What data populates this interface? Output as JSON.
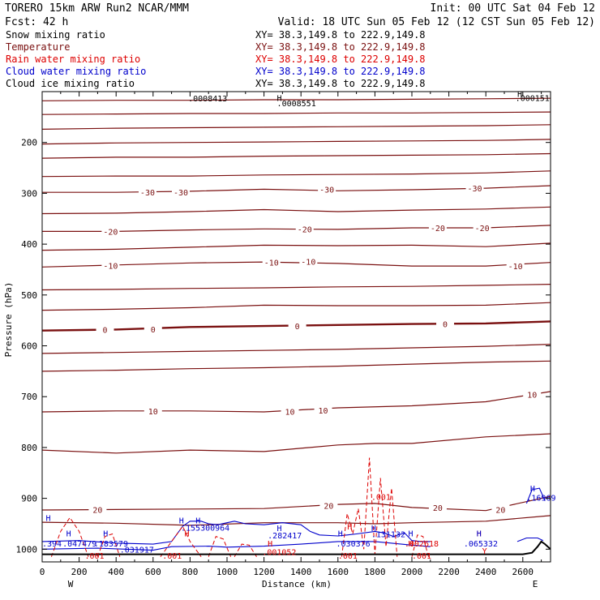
{
  "header": {
    "title": "TORERO  15km ARW   Run2    NCAR/MMM",
    "init": "Init: 00 UTC Sat 04 Feb 12",
    "fcst": "Fcst:   42 h",
    "valid": "Valid: 18 UTC Sun 05 Feb 12 (12 CST Sun 05 Feb 12)"
  },
  "colors": {
    "snow": "#000000",
    "temperature": "#7a1010",
    "rain": "#dd0000",
    "cloud_water": "#0000cc",
    "cloud_ice": "#000000",
    "background": "#ffffff"
  },
  "chart_data": {
    "type": "line",
    "title": "Vertical cross section",
    "xlabel": "Distance (km)",
    "ylabel": "Pressure (hPa)",
    "xlim": [
      0,
      2750
    ],
    "ylim": [
      1025,
      100
    ],
    "x_ticks": [
      0,
      200,
      400,
      600,
      800,
      1000,
      1200,
      1400,
      1600,
      1800,
      2000,
      2200,
      2400,
      2600
    ],
    "y_ticks": [
      200,
      300,
      400,
      500,
      600,
      700,
      800,
      900,
      1000
    ],
    "x_end_labels": {
      "left": "W",
      "right": "E"
    },
    "legend": [
      {
        "name": "Snow mixing ratio",
        "xy": "XY=  38.3,149.8 to 222.9,149.8",
        "color_key": "snow"
      },
      {
        "name": "Temperature",
        "xy": "XY=  38.3,149.8 to 222.9,149.8",
        "color_key": "temperature"
      },
      {
        "name": "Rain water mixing ratio",
        "xy": "XY=  38.3,149.8 to 222.9,149.8",
        "color_key": "rain"
      },
      {
        "name": "Cloud water mixing ratio",
        "xy": "XY=  38.3,149.8 to 222.9,149.8",
        "color_key": "cloud_water"
      },
      {
        "name": "Cloud ice mixing ratio",
        "xy": "XY=  38.3,149.8 to 222.9,149.8",
        "color_key": "cloud_ice"
      }
    ],
    "temperature_isotherms": [
      {
        "x": [
          0,
          400,
          800,
          1200,
          1600,
          2000,
          2400,
          2750
        ],
        "p": [
          118,
          117,
          117,
          116,
          116,
          115,
          114,
          113
        ]
      },
      {
        "x": [
          0,
          400,
          800,
          1200,
          1600,
          2000,
          2400,
          2750
        ],
        "p": [
          145,
          144,
          143,
          143,
          142,
          142,
          141,
          140
        ]
      },
      {
        "x": [
          0,
          400,
          800,
          1200,
          1600,
          2000,
          2400,
          2750
        ],
        "p": [
          174,
          172,
          171,
          170,
          169,
          168,
          167,
          165
        ]
      },
      {
        "x": [
          0,
          400,
          800,
          1200,
          1600,
          2000,
          2400,
          2750
        ],
        "p": [
          203,
          201,
          200,
          199,
          198,
          197,
          196,
          194
        ]
      },
      {
        "x": [
          0,
          400,
          800,
          1200,
          1600,
          2000,
          2400,
          2750
        ],
        "p": [
          231,
          229,
          229,
          227,
          226,
          225,
          224,
          222
        ]
      },
      {
        "x": [
          0,
          400,
          800,
          1200,
          1600,
          2000,
          2400,
          2750
        ],
        "p": [
          267,
          266,
          266,
          264,
          263,
          262,
          260,
          256
        ]
      },
      {
        "value": -30,
        "x": [
          0,
          400,
          800,
          1200,
          1600,
          2000,
          2400,
          2750
        ],
        "p": [
          298,
          298,
          296,
          292,
          295,
          293,
          290,
          285
        ]
      },
      {
        "x": [
          0,
          400,
          800,
          1200,
          1600,
          2000,
          2400,
          2750
        ],
        "p": [
          340,
          339,
          336,
          332,
          336,
          333,
          331,
          327
        ]
      },
      {
        "value": -20,
        "x": [
          0,
          400,
          800,
          1200,
          1600,
          2000,
          2400,
          2750
        ],
        "p": [
          375,
          375,
          372,
          370,
          371,
          368,
          368,
          363
        ]
      },
      {
        "x": [
          0,
          400,
          800,
          1200,
          1600,
          2000,
          2400,
          2750
        ],
        "p": [
          412,
          410,
          406,
          402,
          403,
          402,
          405,
          398
        ]
      },
      {
        "value": -10,
        "x": [
          0,
          400,
          800,
          1200,
          1600,
          2000,
          2400,
          2750
        ],
        "p": [
          445,
          441,
          437,
          435,
          438,
          443,
          443,
          436
        ]
      },
      {
        "x": [
          0,
          400,
          800,
          1200,
          1600,
          2000,
          2400,
          2750
        ],
        "p": [
          490,
          489,
          487,
          486,
          484,
          483,
          481,
          479
        ]
      },
      {
        "x": [
          0,
          400,
          800,
          1200,
          1600,
          2000,
          2400,
          2750
        ],
        "p": [
          530,
          528,
          525,
          520,
          521,
          521,
          520,
          515
        ]
      },
      {
        "value": 0,
        "x": [
          0,
          400,
          800,
          1200,
          1600,
          2000,
          2400,
          2750
        ],
        "p": [
          570,
          568,
          563,
          561,
          559,
          557,
          556,
          552
        ],
        "bold": true
      },
      {
        "x": [
          0,
          400,
          800,
          1200,
          1600,
          2000,
          2400,
          2750
        ],
        "p": [
          615,
          613,
          611,
          609,
          607,
          604,
          601,
          597
        ]
      },
      {
        "x": [
          0,
          400,
          800,
          1200,
          1600,
          2000,
          2400,
          2750
        ],
        "p": [
          650,
          648,
          645,
          643,
          640,
          636,
          632,
          630
        ]
      },
      {
        "value": 10,
        "x": [
          0,
          400,
          800,
          1200,
          1600,
          2000,
          2400,
          2750
        ],
        "p": [
          730,
          728,
          728,
          730,
          722,
          718,
          710,
          690
        ]
      },
      {
        "x": [
          0,
          400,
          800,
          1200,
          1600,
          1800,
          2000,
          2400,
          2750
        ],
        "p": [
          805,
          811,
          805,
          808,
          795,
          792,
          792,
          779,
          773
        ]
      },
      {
        "value": 20,
        "x": [
          0,
          400,
          800,
          1200,
          1600,
          1800,
          2000,
          2400,
          2750
        ],
        "p": [
          923,
          922,
          921,
          920,
          912,
          910,
          918,
          924,
          896
        ]
      },
      {
        "x": [
          0,
          400,
          800,
          1200,
          1600,
          1800,
          2000,
          2400,
          2750
        ],
        "p": [
          947,
          949,
          953,
          948,
          948,
          950,
          948,
          945,
          934
        ]
      }
    ],
    "isotherm_labels": [
      {
        "text": "-30",
        "x": 570,
        "p": 298
      },
      {
        "text": "-30",
        "x": 750,
        "p": 298
      },
      {
        "text": "-30",
        "x": 1540,
        "p": 292
      },
      {
        "text": "-30",
        "x": 2340,
        "p": 290
      },
      {
        "text": "-20",
        "x": 370,
        "p": 375
      },
      {
        "text": "-20",
        "x": 1420,
        "p": 370
      },
      {
        "text": "-20",
        "x": 2140,
        "p": 368
      },
      {
        "text": "-20",
        "x": 2380,
        "p": 368
      },
      {
        "text": "-10",
        "x": 370,
        "p": 442
      },
      {
        "text": "-10",
        "x": 1240,
        "p": 436
      },
      {
        "text": "-10",
        "x": 1440,
        "p": 434
      },
      {
        "text": "-10",
        "x": 2560,
        "p": 443
      },
      {
        "text": "0",
        "x": 340,
        "p": 568
      },
      {
        "text": "0",
        "x": 600,
        "p": 567
      },
      {
        "text": "0",
        "x": 1380,
        "p": 561
      },
      {
        "text": "0",
        "x": 2180,
        "p": 557
      },
      {
        "text": "10",
        "x": 600,
        "p": 728
      },
      {
        "text": "10",
        "x": 1340,
        "p": 729
      },
      {
        "text": "10",
        "x": 1520,
        "p": 727
      },
      {
        "text": "10",
        "x": 2650,
        "p": 696
      },
      {
        "text": "20",
        "x": 300,
        "p": 922
      },
      {
        "text": "20",
        "x": 1550,
        "p": 914
      },
      {
        "text": "20",
        "x": 2140,
        "p": 918
      },
      {
        "text": "20",
        "x": 2480,
        "p": 922
      }
    ],
    "cloud_water_contours": [
      {
        "x": [
          0,
          200,
          400,
          600,
          700,
          760,
          800,
          860,
          900,
          950,
          1000,
          1040,
          1100,
          1200,
          1300,
          1400,
          1450,
          1500,
          1600,
          1650,
          1700,
          1800,
          1850,
          1900,
          1960,
          2000,
          2050,
          2100
        ],
        "p": [
          985,
          983,
          988,
          990,
          985,
          955,
          945,
          945,
          950,
          952,
          948,
          945,
          950,
          952,
          948,
          952,
          965,
          972,
          974,
          972,
          970,
          965,
          968,
          975,
          968,
          983,
          985,
          985
        ]
      },
      {
        "x": [
          0,
          300,
          600,
          700,
          900,
          1000,
          1200,
          1400,
          1600,
          1800,
          2000,
          2100
        ],
        "p": [
          1000,
          998,
          1002,
          995,
          994,
          996,
          994,
          990,
          985,
          985,
          992,
          995
        ]
      },
      {
        "x": [
          2570,
          2620,
          2680,
          2710
        ],
        "p": [
          985,
          978,
          978,
          983
        ]
      },
      {
        "x": [
          2620,
          2650,
          2690,
          2720
        ],
        "p": [
          910,
          883,
          880,
          905
        ]
      }
    ],
    "rain_contours": [
      {
        "x": [
          50,
          100,
          150,
          200,
          250
        ],
        "p": [
          1015,
          965,
          938,
          965,
          1015
        ]
      },
      {
        "x": [
          300,
          340,
          380,
          420
        ],
        "p": [
          1015,
          975,
          970,
          1015
        ]
      },
      {
        "x": [
          640,
          700,
          760,
          800,
          860
        ],
        "p": [
          1015,
          985,
          955,
          985,
          1015
        ]
      },
      {
        "x": [
          900,
          940,
          980,
          1020
        ],
        "p": [
          1015,
          975,
          980,
          1015
        ]
      },
      {
        "x": [
          1040,
          1080,
          1120,
          1160
        ],
        "p": [
          1015,
          990,
          992,
          1015
        ]
      },
      {
        "x": [
          1620,
          1650,
          1680,
          1710,
          1740,
          1770,
          1800,
          1830,
          1860,
          1890,
          1920
        ],
        "p": [
          1015,
          930,
          970,
          920,
          1000,
          820,
          1010,
          860,
          995,
          880,
          1015
        ]
      },
      {
        "x": [
          2000,
          2030,
          2060,
          2090
        ],
        "p": [
          1015,
          972,
          975,
          1015
        ]
      }
    ],
    "terrain": {
      "x": [
        0,
        400,
        800,
        1200,
        1600,
        2000,
        2400,
        2600,
        2650,
        2680,
        2700,
        2720,
        2750
      ],
      "p": [
        1010,
        1010,
        1010,
        1010,
        1010,
        1010,
        1010,
        1010,
        1007,
        995,
        985,
        990,
        1000
      ]
    },
    "annotations": [
      {
        "text": ".0008413",
        "x": 790,
        "p": 113,
        "color_key": "snow"
      },
      {
        "text": ".0008551",
        "x": 1270,
        "p": 122,
        "color_key": "snow"
      },
      {
        "text": "H",
        "x": 1270,
        "p": 112,
        "color_key": "snow"
      },
      {
        "text": ".000151",
        "x": 2560,
        "p": 112,
        "color_key": "snow"
      },
      {
        "text": "H",
        "x": 2570,
        "p": 104,
        "color_key": "snow"
      },
      {
        "text": "H",
        "x": 20,
        "p": 938,
        "color_key": "cloud_water"
      },
      {
        "text": "H",
        "x": 130,
        "p": 968,
        "color_key": "cloud_water"
      },
      {
        "text": "H",
        "x": 330,
        "p": 968,
        "color_key": "cloud_water"
      },
      {
        "text": "H",
        "x": 740,
        "p": 943,
        "color_key": "cloud_water"
      },
      {
        "text": "H",
        "x": 830,
        "p": 943,
        "color_key": "cloud_water"
      },
      {
        "text": "H",
        "x": 1270,
        "p": 958,
        "color_key": "cloud_water"
      },
      {
        "text": "H",
        "x": 1600,
        "p": 968,
        "color_key": "cloud_water"
      },
      {
        "text": "H",
        "x": 1780,
        "p": 958,
        "color_key": "cloud_water"
      },
      {
        "text": "H",
        "x": 1980,
        "p": 968,
        "color_key": "cloud_water"
      },
      {
        "text": "H",
        "x": 2350,
        "p": 968,
        "color_key": "rain"
      },
      {
        "text": "H",
        "x": 2350,
        "p": 968,
        "color_key": "cloud_water"
      },
      {
        "text": "H",
        "x": 2640,
        "p": 880,
        "color_key": "cloud_water"
      },
      {
        "text": "H",
        "x": 770,
        "p": 968,
        "color_key": "rain"
      },
      {
        "text": "H",
        "x": 1650,
        "p": 955,
        "color_key": "rain"
      },
      {
        "text": "H",
        "x": 1220,
        "p": 988,
        "color_key": "rain"
      },
      {
        "text": "H",
        "x": 1980,
        "p": 988,
        "color_key": "rain"
      },
      {
        "text": ".394",
        "x": 0,
        "p": 988,
        "color_key": "cloud_water"
      },
      {
        "text": ".047479",
        "x": 110,
        "p": 988,
        "color_key": "cloud_water"
      },
      {
        "text": ".183579",
        "x": 280,
        "p": 988,
        "color_key": "cloud_water"
      },
      {
        "text": ".031917",
        "x": 420,
        "p": 1000,
        "color_key": "cloud_water"
      },
      {
        "text": ".155300964",
        "x": 750,
        "p": 957,
        "color_key": "cloud_water"
      },
      {
        "text": ".282417",
        "x": 1220,
        "p": 972,
        "color_key": "cloud_water"
      },
      {
        "text": ".030376",
        "x": 1590,
        "p": 988,
        "color_key": "cloud_water"
      },
      {
        "text": ".131132",
        "x": 1780,
        "p": 970,
        "color_key": "cloud_water"
      },
      {
        "text": ".002618",
        "x": 1960,
        "p": 988,
        "color_key": "rain"
      },
      {
        "text": ".065332",
        "x": 2280,
        "p": 988,
        "color_key": "cloud_water"
      },
      {
        "text": ".16969",
        "x": 2620,
        "p": 898,
        "color_key": "cloud_water"
      },
      {
        "text": ".001052",
        "x": 1190,
        "p": 1005,
        "color_key": "rain"
      },
      {
        "text": ".001",
        "x": 1780,
        "p": 897,
        "color_key": "rain"
      },
      {
        "text": ".001",
        "x": 230,
        "p": 1012,
        "color_key": "rain"
      },
      {
        "text": ".001",
        "x": 650,
        "p": 1012,
        "color_key": "rain"
      },
      {
        "text": ".001",
        "x": 1600,
        "p": 1012,
        "color_key": "rain"
      },
      {
        "text": ".001",
        "x": 2000,
        "p": 1012,
        "color_key": "rain"
      },
      {
        "text": "Y",
        "x": 2380,
        "p": 1003,
        "color_key": "rain"
      }
    ]
  }
}
